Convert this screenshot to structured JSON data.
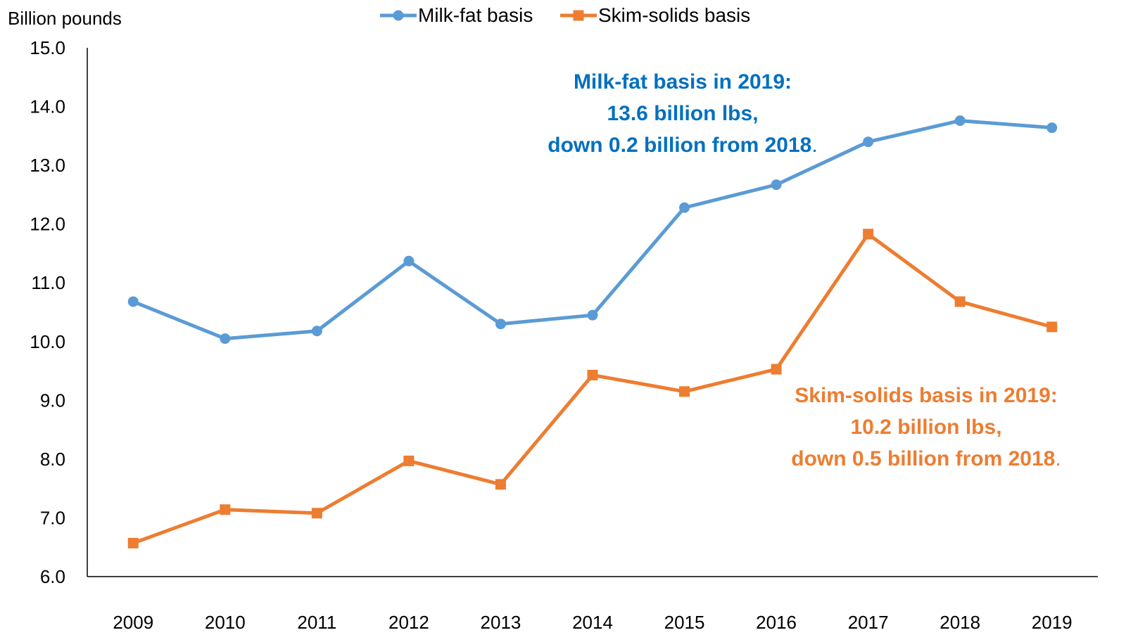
{
  "chart_data": {
    "type": "line",
    "ylabel": "Billion pounds",
    "xlabel": "",
    "ylim": [
      6.0,
      15.0
    ],
    "y_ticks": [
      "6.0",
      "7.0",
      "8.0",
      "9.0",
      "10.0",
      "11.0",
      "12.0",
      "13.0",
      "14.0",
      "15.0"
    ],
    "categories": [
      "2009",
      "2010",
      "2011",
      "2012",
      "2013",
      "2014",
      "2015",
      "2016",
      "2017",
      "2018",
      "2019"
    ],
    "legend_position": "top-center",
    "grid": false,
    "series": [
      {
        "name": "Milk-fat basis",
        "color": "#5b9bd5",
        "marker": "circle",
        "values": [
          10.68,
          10.05,
          10.18,
          11.37,
          10.3,
          10.45,
          12.28,
          12.67,
          13.4,
          13.76,
          13.64
        ]
      },
      {
        "name": "Skim-solids basis",
        "color": "#ed7d31",
        "marker": "square",
        "values": [
          6.57,
          7.14,
          7.08,
          7.97,
          7.57,
          9.43,
          9.15,
          9.53,
          11.83,
          10.68,
          10.25
        ]
      }
    ],
    "annotations": [
      {
        "color": "#0070c0",
        "lines": [
          "Milk-fat basis in 2019:",
          "13.6 billion lbs,",
          "down 0.2 billion from 2018"
        ],
        "suffix": "."
      },
      {
        "color": "#ed7d31",
        "lines": [
          "Skim-solids basis in 2019:",
          "10.2 billion lbs,",
          "down 0.5 billion from 2018"
        ],
        "suffix": "."
      }
    ]
  }
}
